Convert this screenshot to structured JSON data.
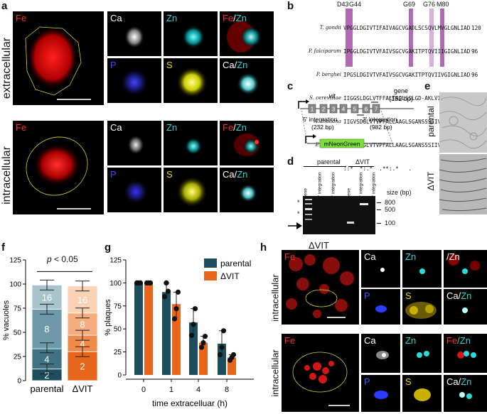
{
  "panels": {
    "a": "a",
    "b": "b",
    "c": "c",
    "d": "d",
    "e": "e",
    "f": "f",
    "g": "g",
    "h": "h"
  },
  "colors": {
    "fe": "#ff2a2a",
    "zn": "#2ad9d9",
    "p": "#2a3cff",
    "s": "#f2d600",
    "ca": "#ffffff",
    "parental": "#1d4e5e",
    "dvit": "#e8661c",
    "highlight": "#b06ab3"
  },
  "panel_a": {
    "row1_label": "extracellular",
    "row2_label": "intracellular",
    "tiles": {
      "fe": "Fe",
      "ca": "Ca",
      "zn": "Zn",
      "fezn_fe": "Fe",
      "fezn_sep": "/",
      "fezn_zn": "Zn",
      "p": "P",
      "s": "S",
      "cazn_ca": "Ca/",
      "cazn_zn": "Zn"
    }
  },
  "panel_b": {
    "residues": [
      "D43",
      "G44",
      "G69",
      "G76",
      "M80"
    ],
    "species": [
      "T. gondii",
      "P. falciparum",
      "P. berghei",
      "S. cerevisiae",
      "A. thaliana",
      "E. grandis"
    ],
    "sequences": [
      "VPGGLDGIVTIFAIVAGCVGADLSCSQVLMVGLGNLIADAISMGFGEY",
      "IPGGLDGIVTVFAIVSGCVGAKITPTQVIIIGIGNLIADAISMGFSEY",
      "IPGSLDGIVTVFAIVSGCVGAKITPTQVIIVGIGNLIADAISMGFSEY",
      "IIGGSLDGLVTFFALTAGLSSLGD-AKLVIVGFAELISGAIAMSFGGY",
      "IIGVSDGLVTVPFALLAAGLSGANSSSIIVLTAGIAEVAAGAISMGLGGY",
      "IIGVSDGLVTVPFALLAAGLSGANSSSIIVLTAGIAEVAAGAISMGLGGY"
    ],
    "numbers": [
      "120",
      "96",
      "96",
      "151",
      "86",
      "85"
    ],
    "consensus": "::*  *:.*  .**:.*   .         *:  .:*******  *"
  },
  "panel_c": {
    "vit": "vit",
    "gene": "gene",
    "gene_size": "(152 bp)",
    "int5": "5' integration",
    "int5_size": "(232 bp)",
    "int3": "3' integration",
    "int3_size": "(982 bp)",
    "mng": "mNeonGreen",
    "exons": [
      "1",
      "2",
      "3",
      "4",
      "5",
      "6",
      "7"
    ]
  },
  "panel_d": {
    "parental": "parental",
    "dvit": "ΔVIT",
    "lanes": [
      "gene",
      "5' integration",
      "3' integration",
      "gene",
      "5' integration",
      "3' integration"
    ],
    "size_label": "size (bp)",
    "sizes": [
      "800",
      "500",
      "100"
    ],
    "stars": [
      "*",
      "*"
    ]
  },
  "panel_e": {
    "top": "parental",
    "bottom": "ΔVIT"
  },
  "panel_f": {
    "pvalue_p": "p",
    "pvalue_rest": " < 0.05",
    "ylabel": "% vacuoles"
  },
  "panel_g": {
    "ylabel": "% plaques",
    "xlabel": "time extracelluar (h)"
  },
  "panel_h": {
    "title": "ΔVIT",
    "row1": "intracellular",
    "row2": "intracellular",
    "tiles": {
      "fe": "Fe",
      "ca": "Ca",
      "zn": "Zn",
      "zn2": "/Zn",
      "p": "P",
      "s": "S",
      "cazn_ca": "Ca/",
      "cazn_zn": "Zn",
      "fezn_fe": "Fe",
      "fezn_zn": "/Zn"
    }
  },
  "chart_data": [
    {
      "type": "bar",
      "title": "",
      "xlabel": "",
      "ylabel": "% vacuoles",
      "categories": [
        "parental",
        "ΔVIT"
      ],
      "ylim": [
        0,
        125
      ],
      "yticks": [
        0,
        25,
        50,
        75,
        100,
        125
      ],
      "stacked": true,
      "series": [
        {
          "name": "2",
          "values": [
            12,
            30
          ]
        },
        {
          "name": "4",
          "values": [
            21,
            17
          ]
        },
        {
          "name": "8",
          "values": [
            41,
            23
          ]
        },
        {
          "name": "16",
          "values": [
            25,
            28
          ]
        }
      ],
      "error_tops": [
        [
          12,
          34,
          74,
          99
        ],
        [
          30,
          47,
          70,
          98
        ]
      ],
      "annotation": "p < 0.05"
    },
    {
      "type": "bar",
      "title": "",
      "xlabel": "time extracelluar (h)",
      "ylabel": "% plaques",
      "categories": [
        "0",
        "1",
        "4",
        "8"
      ],
      "ylim": [
        0,
        125
      ],
      "yticks": [
        0,
        25,
        50,
        75,
        100,
        125
      ],
      "legend": "top-right",
      "series": [
        {
          "name": "parental",
          "values": [
            100,
            90,
            57,
            34
          ],
          "points": [
            [
              100,
              100,
              100
            ],
            [
              85,
              100,
              91
            ],
            [
              43,
              55,
              72
            ],
            [
              22,
              30,
              48
            ]
          ]
        },
        {
          "name": "ΔVIT",
          "values": [
            100,
            77,
            35,
            19
          ],
          "points": [
            [
              100,
              100,
              100
            ],
            [
              61,
              72,
              90
            ],
            [
              30,
              35,
              42
            ],
            [
              16,
              19,
              22
            ]
          ]
        }
      ]
    }
  ]
}
